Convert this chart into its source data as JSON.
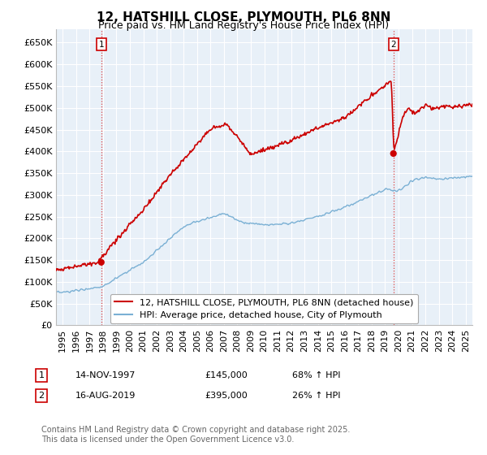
{
  "title": "12, HATSHILL CLOSE, PLYMOUTH, PL6 8NN",
  "subtitle": "Price paid vs. HM Land Registry's House Price Index (HPI)",
  "xlim": [
    1994.5,
    2025.5
  ],
  "ylim": [
    0,
    680000
  ],
  "yticks": [
    0,
    50000,
    100000,
    150000,
    200000,
    250000,
    300000,
    350000,
    400000,
    450000,
    500000,
    550000,
    600000,
    650000
  ],
  "ytick_labels": [
    "£0",
    "£50K",
    "£100K",
    "£150K",
    "£200K",
    "£250K",
    "£300K",
    "£350K",
    "£400K",
    "£450K",
    "£500K",
    "£550K",
    "£600K",
    "£650K"
  ],
  "xticks": [
    1995,
    1996,
    1997,
    1998,
    1999,
    2000,
    2001,
    2002,
    2003,
    2004,
    2005,
    2006,
    2007,
    2008,
    2009,
    2010,
    2011,
    2012,
    2013,
    2014,
    2015,
    2016,
    2017,
    2018,
    2019,
    2020,
    2021,
    2022,
    2023,
    2024,
    2025
  ],
  "sale1_x": 1997.87,
  "sale1_y": 145000,
  "sale1_label": "1",
  "sale1_date": "14-NOV-1997",
  "sale1_price": "£145,000",
  "sale1_hpi": "68% ↑ HPI",
  "sale2_x": 2019.62,
  "sale2_y": 395000,
  "sale2_label": "2",
  "sale2_date": "16-AUG-2019",
  "sale2_price": "£395,000",
  "sale2_hpi": "26% ↑ HPI",
  "vline_color": "#dd4444",
  "vline_style": ":",
  "sale_color": "#cc0000",
  "hpi_color": "#7ab0d4",
  "legend1": "12, HATSHILL CLOSE, PLYMOUTH, PL6 8NN (detached house)",
  "legend2": "HPI: Average price, detached house, City of Plymouth",
  "footer": "Contains HM Land Registry data © Crown copyright and database right 2025.\nThis data is licensed under the Open Government Licence v3.0.",
  "plot_bg": "#e8f0f8",
  "grid_color": "#ffffff",
  "title_fontsize": 11,
  "subtitle_fontsize": 9,
  "tick_fontsize": 8,
  "legend_fontsize": 8,
  "footer_fontsize": 7
}
